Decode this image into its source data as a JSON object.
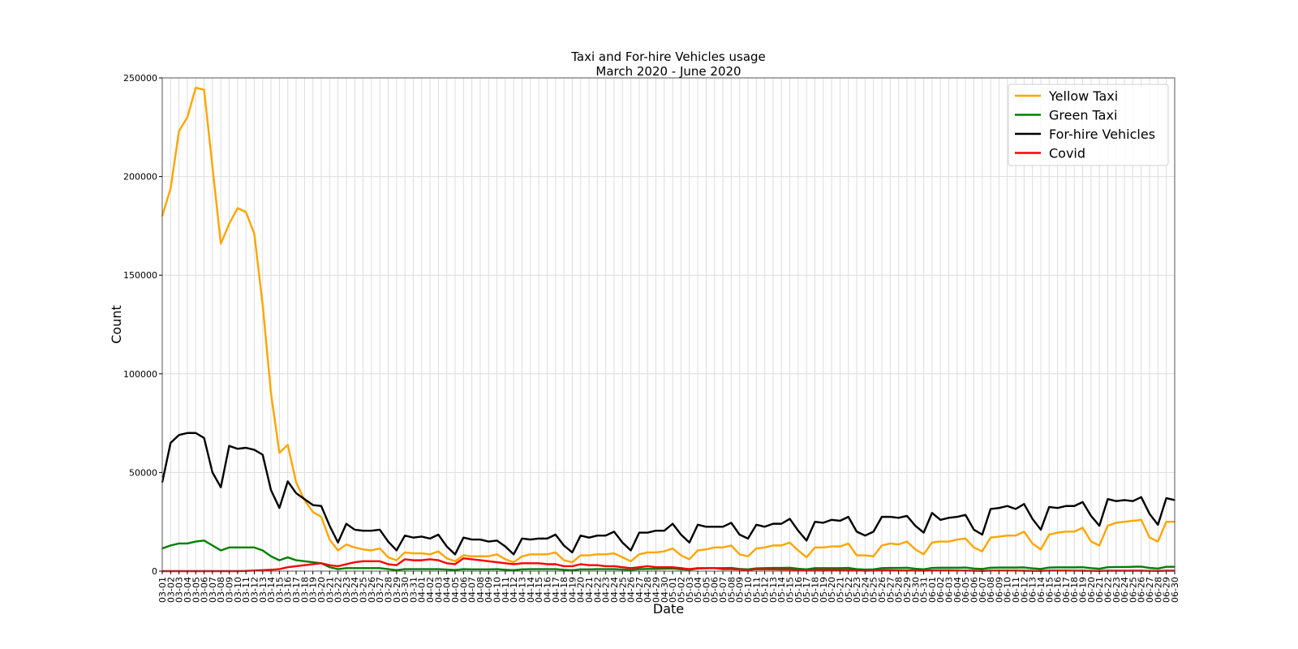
{
  "chart_data": {
    "type": "line",
    "title": "Taxi and For-hire Vehicles usage",
    "subtitle": "March 2020 - June 2020",
    "xlabel": "Date",
    "ylabel": "Count",
    "ylim": [
      0,
      250000
    ],
    "yticks": [
      0,
      50000,
      100000,
      150000,
      200000,
      250000
    ],
    "grid": true,
    "legend_position": "top-right",
    "x": [
      "03-01",
      "03-02",
      "03-03",
      "03-04",
      "03-05",
      "03-06",
      "03-07",
      "03-08",
      "03-09",
      "03-10",
      "03-11",
      "03-12",
      "03-13",
      "03-14",
      "03-15",
      "03-16",
      "03-17",
      "03-18",
      "03-19",
      "03-20",
      "03-21",
      "03-22",
      "03-23",
      "03-24",
      "03-25",
      "03-26",
      "03-27",
      "03-28",
      "03-29",
      "03-30",
      "03-31",
      "04-01",
      "04-02",
      "04-03",
      "04-04",
      "04-05",
      "04-06",
      "04-07",
      "04-08",
      "04-09",
      "04-10",
      "04-11",
      "04-12",
      "04-13",
      "04-14",
      "04-15",
      "04-16",
      "04-17",
      "04-18",
      "04-19",
      "04-20",
      "04-21",
      "04-22",
      "04-23",
      "04-24",
      "04-25",
      "04-26",
      "04-27",
      "04-28",
      "04-29",
      "04-30",
      "05-01",
      "05-02",
      "05-03",
      "05-04",
      "05-05",
      "05-06",
      "05-07",
      "05-08",
      "05-09",
      "05-10",
      "05-11",
      "05-12",
      "05-13",
      "05-14",
      "05-15",
      "05-16",
      "05-17",
      "05-18",
      "05-19",
      "05-20",
      "05-21",
      "05-22",
      "05-23",
      "05-24",
      "05-25",
      "05-26",
      "05-27",
      "05-28",
      "05-29",
      "05-30",
      "05-31",
      "06-01",
      "06-02",
      "06-03",
      "06-04",
      "06-05",
      "06-06",
      "06-07",
      "06-08",
      "06-09",
      "06-10",
      "06-11",
      "06-12",
      "06-13",
      "06-14",
      "06-15",
      "06-16",
      "06-17",
      "06-18",
      "06-19",
      "06-20",
      "06-21",
      "06-22",
      "06-23",
      "06-24",
      "06-25",
      "06-26",
      "06-27",
      "06-28",
      "06-29",
      "06-30"
    ],
    "series": [
      {
        "name": "Yellow Taxi",
        "color": "#ffa500",
        "values": [
          180000,
          194000,
          223000,
          230000,
          245000,
          244000,
          205000,
          166000,
          176000,
          184000,
          182000,
          171000,
          135000,
          90000,
          60000,
          64000,
          45000,
          36000,
          30000,
          27500,
          16000,
          10500,
          13500,
          12000,
          11000,
          10500,
          11500,
          7000,
          5500,
          9500,
          9000,
          9000,
          8500,
          10000,
          6500,
          5000,
          8000,
          7500,
          7500,
          7500,
          8500,
          6000,
          4500,
          7500,
          8500,
          8500,
          8500,
          9500,
          5500,
          4500,
          8000,
          8000,
          8500,
          8500,
          9000,
          7000,
          5000,
          8500,
          9500,
          9500,
          10000,
          11500,
          8000,
          6000,
          10500,
          11000,
          12000,
          12000,
          13000,
          8500,
          7500,
          11500,
          12000,
          13000,
          13000,
          14500,
          10500,
          7000,
          12000,
          12000,
          12500,
          12500,
          14000,
          8000,
          8000,
          7500,
          13000,
          14000,
          13500,
          15000,
          11000,
          8500,
          14500,
          15000,
          15000,
          16000,
          16500,
          12000,
          10000,
          17000,
          17500,
          18000,
          18000,
          20000,
          14000,
          11000,
          18500,
          19500,
          20000,
          20000,
          22000,
          15000,
          13000,
          23000,
          24500,
          25000,
          25500,
          26000,
          17000,
          15000,
          25000,
          25000
        ]
      },
      {
        "name": "Green Taxi",
        "color": "#008000",
        "values": [
          11500,
          13000,
          14000,
          14000,
          15000,
          15500,
          13000,
          10500,
          12000,
          12000,
          12000,
          12000,
          10500,
          7500,
          5500,
          7000,
          5500,
          5000,
          4500,
          4000,
          2000,
          1000,
          1500,
          1500,
          1500,
          1500,
          1500,
          1000,
          500,
          1000,
          1000,
          1000,
          1000,
          1000,
          800,
          600,
          1000,
          900,
          900,
          900,
          1000,
          700,
          500,
          900,
          1000,
          1000,
          1000,
          1000,
          700,
          500,
          900,
          900,
          1000,
          1000,
          1000,
          800,
          600,
          1000,
          1100,
          1100,
          1200,
          1300,
          900,
          700,
          1300,
          1400,
          1500,
          1500,
          1600,
          1100,
          900,
          1400,
          1500,
          1600,
          1600,
          1700,
          1200,
          900,
          1500,
          1500,
          1500,
          1500,
          1600,
          1000,
          800,
          900,
          1500,
          1600,
          1600,
          1700,
          1200,
          900,
          1600,
          1700,
          1700,
          1700,
          1800,
          1300,
          1100,
          1700,
          1800,
          1800,
          1800,
          1900,
          1400,
          1100,
          1800,
          1900,
          1900,
          1900,
          2000,
          1500,
          1200,
          2000,
          2100,
          2100,
          2200,
          2300,
          1600,
          1300,
          2200,
          2200
        ]
      },
      {
        "name": "For-hire Vehicles",
        "color": "#000000",
        "values": [
          45000,
          65000,
          69000,
          70000,
          70000,
          67500,
          50000,
          42500,
          63500,
          62000,
          62500,
          61500,
          59000,
          41000,
          32000,
          45500,
          39500,
          36500,
          33500,
          33000,
          23000,
          14500,
          24000,
          21000,
          20500,
          20500,
          21000,
          15000,
          10500,
          18000,
          17000,
          17500,
          16500,
          18500,
          12500,
          8500,
          17000,
          16000,
          16000,
          15000,
          15500,
          12500,
          8500,
          16500,
          16000,
          16500,
          16500,
          18500,
          13000,
          9500,
          18000,
          17000,
          18000,
          18000,
          20000,
          14500,
          10500,
          19500,
          19500,
          20500,
          20500,
          24000,
          18500,
          14500,
          23500,
          22500,
          22500,
          22500,
          24500,
          18500,
          16500,
          23500,
          22500,
          24000,
          24000,
          26500,
          20500,
          15500,
          25000,
          24500,
          26000,
          25500,
          27500,
          20000,
          18000,
          20000,
          27500,
          27500,
          27000,
          28000,
          23000,
          19500,
          29500,
          26000,
          27000,
          27500,
          28500,
          21000,
          18500,
          31500,
          32000,
          33000,
          31500,
          34000,
          26500,
          21000,
          32500,
          32000,
          33000,
          33000,
          35000,
          28000,
          23000,
          36500,
          35500,
          36000,
          35500,
          37500,
          29000,
          23500,
          37000,
          36000
        ]
      },
      {
        "name": "Covid",
        "color": "#ff0000",
        "values": [
          0,
          0,
          0,
          0,
          0,
          0,
          0,
          0,
          0,
          0,
          100,
          300,
          500,
          700,
          1000,
          2000,
          2500,
          3000,
          3500,
          4000,
          3000,
          2500,
          3500,
          4500,
          5000,
          5000,
          5000,
          3500,
          3000,
          6000,
          5500,
          5500,
          6000,
          5500,
          4000,
          3500,
          6500,
          6000,
          5500,
          5000,
          4500,
          4000,
          3500,
          4000,
          4000,
          4000,
          3500,
          3500,
          2500,
          2500,
          3500,
          3000,
          3000,
          2500,
          2500,
          2000,
          1500,
          2000,
          2500,
          2000,
          2000,
          2000,
          1500,
          1000,
          1500,
          1500,
          1500,
          1000,
          1000,
          800,
          500,
          1000,
          900,
          900,
          800,
          800,
          500,
          300,
          700,
          700,
          700,
          600,
          600,
          400,
          200,
          300,
          500,
          500,
          400,
          400,
          300,
          200,
          400,
          400,
          400,
          300,
          300,
          200,
          100,
          300,
          300,
          300,
          300,
          200,
          150,
          100,
          300,
          300,
          300,
          250,
          200,
          150,
          100,
          250,
          200,
          200,
          200,
          200,
          150,
          100,
          200,
          200
        ]
      }
    ]
  }
}
